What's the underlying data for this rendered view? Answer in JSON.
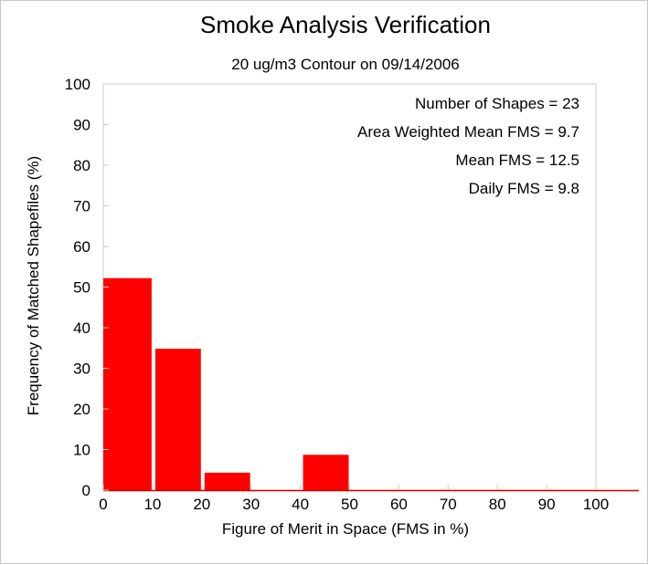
{
  "chart_data": {
    "type": "bar",
    "title": "Smoke Analysis Verification",
    "subtitle": "20 ug/m3 Contour on 09/14/2006",
    "xlabel": "Figure of Merit in Space (FMS in %)",
    "ylabel": "Frequency of Matched Shapefiles (%)",
    "xlim": [
      0,
      110
    ],
    "ylim": [
      0,
      100
    ],
    "x_ticks": [
      "0",
      "10",
      "20",
      "30",
      "40",
      "50",
      "60",
      "70",
      "80",
      "90",
      "100"
    ],
    "y_ticks": [
      "0",
      "10",
      "20",
      "30",
      "40",
      "50",
      "60",
      "70",
      "80",
      "90",
      "100"
    ],
    "bins": [
      {
        "start": 0,
        "end": 10,
        "value": 52.2
      },
      {
        "start": 10,
        "end": 20,
        "value": 34.8
      },
      {
        "start": 20,
        "end": 30,
        "value": 4.3
      },
      {
        "start": 30,
        "end": 40,
        "value": 0
      },
      {
        "start": 40,
        "end": 50,
        "value": 8.7
      },
      {
        "start": 50,
        "end": 60,
        "value": 0
      },
      {
        "start": 60,
        "end": 70,
        "value": 0
      },
      {
        "start": 70,
        "end": 80,
        "value": 0
      },
      {
        "start": 80,
        "end": 90,
        "value": 0
      },
      {
        "start": 90,
        "end": 100,
        "value": 0
      },
      {
        "start": 100,
        "end": 110,
        "value": 0
      }
    ],
    "annotations": [
      "Number of Shapes = 23",
      "Area Weighted Mean FMS = 9.7",
      "Mean FMS = 12.5",
      "Daily FMS = 9.8"
    ],
    "bar_color": "#ff0000",
    "grid": false,
    "legend": "none"
  }
}
